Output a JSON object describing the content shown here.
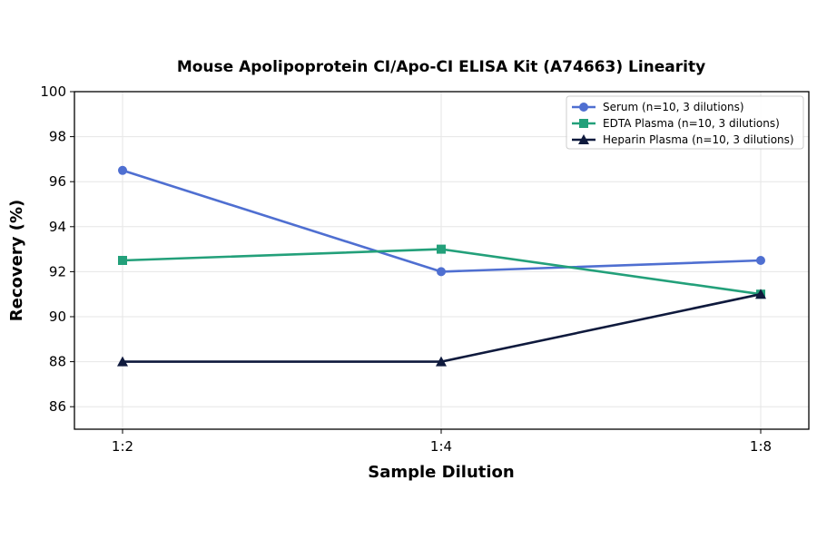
{
  "chart_data": {
    "type": "line",
    "title": "Mouse Apolipoprotein CI/Apo-CI ELISA Kit (A74663) Linearity",
    "xlabel": "Sample Dilution",
    "ylabel": "Recovery (%)",
    "categories": [
      "1:2",
      "1:4",
      "1:8"
    ],
    "ylim": [
      85,
      100
    ],
    "yticks": [
      86,
      88,
      90,
      92,
      94,
      96,
      98,
      100
    ],
    "grid": true,
    "legend_position": "top-right",
    "series": [
      {
        "name": "Serum (n=10, 3 dilutions)",
        "values": [
          96.5,
          92.0,
          92.5
        ],
        "color": "#4f6fd1",
        "marker": "circle"
      },
      {
        "name": "EDTA Plasma (n=10, 3 dilutions)",
        "values": [
          92.5,
          93.0,
          91.0
        ],
        "color": "#23a07a",
        "marker": "square"
      },
      {
        "name": "Heparin Plasma (n=10, 3 dilutions)",
        "values": [
          88.0,
          88.0,
          91.0
        ],
        "color": "#0f1a3d",
        "marker": "triangle"
      }
    ]
  }
}
